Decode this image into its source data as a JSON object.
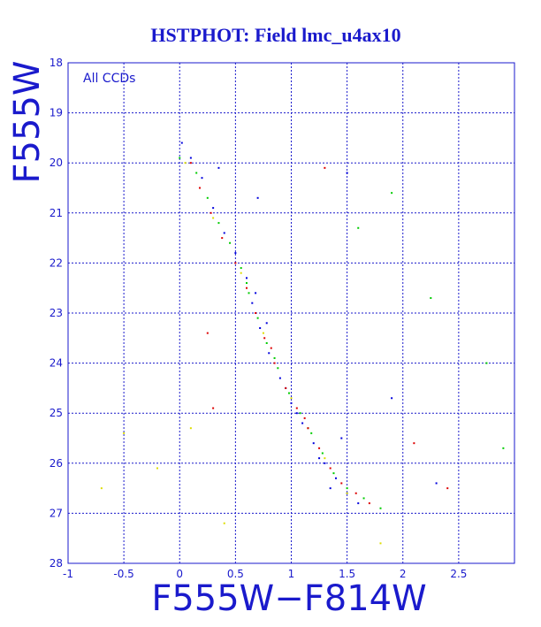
{
  "chart_data": {
    "type": "scatter",
    "title": "HSTPHOT: Field lmc_u4ax10",
    "xlabel": "F555W−F814W",
    "ylabel": "F555W",
    "annotation": "All CCDs",
    "xlim": [
      -1,
      3
    ],
    "ylim": [
      28,
      18
    ],
    "y_inverted": true,
    "grid": true,
    "x_ticks": [
      "-1",
      "-0.5",
      "0",
      "0.5",
      "1",
      "1.5",
      "2",
      "2.5"
    ],
    "x_tick_values": [
      -1,
      -0.5,
      0,
      0.5,
      1,
      1.5,
      2,
      2.5
    ],
    "y_ticks": [
      "18",
      "19",
      "20",
      "21",
      "22",
      "23",
      "24",
      "25",
      "26",
      "27",
      "28"
    ],
    "y_tick_values": [
      18,
      19,
      20,
      21,
      22,
      23,
      24,
      25,
      26,
      27,
      28
    ],
    "colors": {
      "text": "#1a1acc",
      "grid": "#1a1acc",
      "series": [
        "#0000dd",
        "#00cc00",
        "#dd0000",
        "#dddd00"
      ]
    },
    "series": [
      {
        "color": "#0000dd",
        "points": [
          [
            0.02,
            19.6
          ],
          [
            0.1,
            19.9
          ],
          [
            0.2,
            20.3
          ],
          [
            0.3,
            20.9
          ],
          [
            0.4,
            21.4
          ],
          [
            0.5,
            21.8
          ],
          [
            0.6,
            22.3
          ],
          [
            0.65,
            22.8
          ],
          [
            0.72,
            23.3
          ],
          [
            0.8,
            23.8
          ],
          [
            0.9,
            24.3
          ],
          [
            1.0,
            24.8
          ],
          [
            1.1,
            25.2
          ],
          [
            1.2,
            25.6
          ],
          [
            1.3,
            26.0
          ],
          [
            1.4,
            26.3
          ],
          [
            1.5,
            26.6
          ],
          [
            1.6,
            26.8
          ],
          [
            1.05,
            25.0
          ],
          [
            0.95,
            24.5
          ],
          [
            0.78,
            23.2
          ],
          [
            0.68,
            22.6
          ],
          [
            1.25,
            25.9
          ],
          [
            1.35,
            26.5
          ],
          [
            0.35,
            20.1
          ],
          [
            0.7,
            20.7
          ],
          [
            1.5,
            20.2
          ],
          [
            1.9,
            24.7
          ],
          [
            2.3,
            26.4
          ],
          [
            1.45,
            25.5
          ]
        ]
      },
      {
        "color": "#00cc00",
        "points": [
          [
            0.0,
            19.9
          ],
          [
            0.15,
            20.2
          ],
          [
            0.25,
            20.7
          ],
          [
            0.35,
            21.2
          ],
          [
            0.45,
            21.6
          ],
          [
            0.55,
            22.1
          ],
          [
            0.62,
            22.6
          ],
          [
            0.7,
            23.1
          ],
          [
            0.78,
            23.6
          ],
          [
            0.88,
            24.1
          ],
          [
            0.98,
            24.6
          ],
          [
            1.08,
            25.0
          ],
          [
            1.18,
            25.4
          ],
          [
            1.28,
            25.8
          ],
          [
            1.38,
            26.2
          ],
          [
            1.5,
            26.5
          ],
          [
            1.65,
            26.7
          ],
          [
            1.8,
            26.9
          ],
          [
            2.25,
            22.7
          ],
          [
            2.75,
            24.0
          ],
          [
            2.9,
            25.7
          ],
          [
            1.6,
            21.3
          ],
          [
            1.9,
            20.6
          ],
          [
            0.85,
            23.9
          ],
          [
            1.15,
            25.3
          ],
          [
            0.6,
            22.4
          ]
        ]
      },
      {
        "color": "#dd0000",
        "points": [
          [
            0.1,
            20.0
          ],
          [
            0.18,
            20.5
          ],
          [
            0.28,
            21.0
          ],
          [
            0.38,
            21.5
          ],
          [
            0.5,
            22.0
          ],
          [
            0.6,
            22.5
          ],
          [
            0.68,
            23.0
          ],
          [
            0.76,
            23.5
          ],
          [
            0.85,
            24.0
          ],
          [
            0.95,
            24.5
          ],
          [
            1.05,
            24.9
          ],
          [
            1.15,
            25.3
          ],
          [
            1.25,
            25.7
          ],
          [
            1.35,
            26.1
          ],
          [
            1.45,
            26.4
          ],
          [
            1.58,
            26.6
          ],
          [
            1.7,
            26.8
          ],
          [
            1.3,
            20.1
          ],
          [
            2.1,
            25.6
          ],
          [
            2.4,
            26.5
          ],
          [
            0.3,
            24.9
          ],
          [
            0.25,
            23.4
          ],
          [
            0.82,
            23.7
          ],
          [
            1.12,
            25.1
          ]
        ]
      },
      {
        "color": "#dddd00",
        "points": [
          [
            0.05,
            20.0
          ],
          [
            0.3,
            21.1
          ],
          [
            0.55,
            22.2
          ],
          [
            0.75,
            23.4
          ],
          [
            1.0,
            24.7
          ],
          [
            1.3,
            25.9
          ],
          [
            1.5,
            26.6
          ],
          [
            -0.5,
            25.4
          ],
          [
            -0.7,
            26.5
          ],
          [
            0.4,
            27.2
          ],
          [
            1.8,
            27.6
          ],
          [
            -0.2,
            26.1
          ],
          [
            0.1,
            25.3
          ]
        ]
      }
    ]
  }
}
